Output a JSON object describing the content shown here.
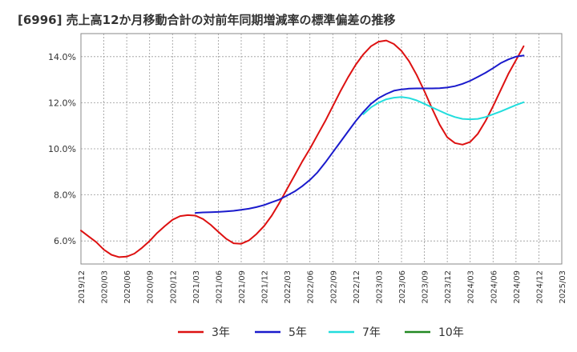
{
  "chart_data": {
    "type": "line",
    "title": "[6996]  売上高12か月移動合計の対前年同期増減率の標準偏差の推移",
    "xlabel": "",
    "ylabel": "",
    "ylim": [
      5.0,
      15.0
    ],
    "yticks": [
      6.0,
      8.0,
      10.0,
      12.0,
      14.0
    ],
    "ytick_labels": [
      "6.0%",
      "8.0%",
      "10.0%",
      "12.0%",
      "14.0%"
    ],
    "xtick_labels": [
      "2019/12",
      "2020/03",
      "2020/06",
      "2020/09",
      "2020/12",
      "2021/03",
      "2021/06",
      "2021/09",
      "2021/12",
      "2022/03",
      "2022/06",
      "2022/09",
      "2022/12",
      "2023/03",
      "2023/06",
      "2023/09",
      "2023/12",
      "2024/03",
      "2024/06",
      "2024/09",
      "2024/12",
      "2025/03"
    ],
    "grid": true,
    "legend_position": "bottom",
    "series": [
      {
        "name": "3年",
        "color": "#dd1111",
        "points": [
          [
            "2019/12",
            6.45
          ],
          [
            "2020/01",
            6.2
          ],
          [
            "2020/02",
            5.95
          ],
          [
            "2020/03",
            5.62
          ],
          [
            "2020/04",
            5.4
          ],
          [
            "2020/05",
            5.3
          ],
          [
            "2020/06",
            5.32
          ],
          [
            "2020/07",
            5.45
          ],
          [
            "2020/08",
            5.7
          ],
          [
            "2020/09",
            6.0
          ],
          [
            "2020/10",
            6.35
          ],
          [
            "2020/11",
            6.65
          ],
          [
            "2020/12",
            6.92
          ],
          [
            "2021/01",
            7.08
          ],
          [
            "2021/02",
            7.12
          ],
          [
            "2021/03",
            7.1
          ],
          [
            "2021/04",
            6.95
          ],
          [
            "2021/05",
            6.7
          ],
          [
            "2021/06",
            6.4
          ],
          [
            "2021/07",
            6.1
          ],
          [
            "2021/08",
            5.9
          ],
          [
            "2021/09",
            5.88
          ],
          [
            "2021/10",
            6.02
          ],
          [
            "2021/11",
            6.3
          ],
          [
            "2021/12",
            6.65
          ],
          [
            "2022/01",
            7.1
          ],
          [
            "2022/02",
            7.65
          ],
          [
            "2022/03",
            8.25
          ],
          [
            "2022/04",
            8.85
          ],
          [
            "2022/05",
            9.45
          ],
          [
            "2022/06",
            10.0
          ],
          [
            "2022/07",
            10.6
          ],
          [
            "2022/08",
            11.2
          ],
          [
            "2022/09",
            11.85
          ],
          [
            "2022/10",
            12.5
          ],
          [
            "2022/11",
            13.1
          ],
          [
            "2022/12",
            13.65
          ],
          [
            "2023/01",
            14.1
          ],
          [
            "2023/02",
            14.45
          ],
          [
            "2023/03",
            14.65
          ],
          [
            "2023/04",
            14.7
          ],
          [
            "2023/05",
            14.55
          ],
          [
            "2023/06",
            14.25
          ],
          [
            "2023/07",
            13.8
          ],
          [
            "2023/08",
            13.2
          ],
          [
            "2023/09",
            12.5
          ],
          [
            "2023/10",
            11.75
          ],
          [
            "2023/11",
            11.05
          ],
          [
            "2023/12",
            10.5
          ],
          [
            "2024/01",
            10.25
          ],
          [
            "2024/02",
            10.18
          ],
          [
            "2024/03",
            10.3
          ],
          [
            "2024/04",
            10.65
          ],
          [
            "2024/05",
            11.2
          ],
          [
            "2024/06",
            11.85
          ],
          [
            "2024/07",
            12.55
          ],
          [
            "2024/08",
            13.25
          ],
          [
            "2024/09",
            13.85
          ],
          [
            "2024/10",
            14.45
          ]
        ]
      },
      {
        "name": "5年",
        "color": "#1a1acc",
        "points": [
          [
            "2021/03",
            7.22
          ],
          [
            "2021/04",
            7.24
          ],
          [
            "2021/05",
            7.25
          ],
          [
            "2021/06",
            7.26
          ],
          [
            "2021/07",
            7.28
          ],
          [
            "2021/08",
            7.31
          ],
          [
            "2021/09",
            7.35
          ],
          [
            "2021/10",
            7.4
          ],
          [
            "2021/11",
            7.47
          ],
          [
            "2021/12",
            7.56
          ],
          [
            "2022/01",
            7.68
          ],
          [
            "2022/02",
            7.8
          ],
          [
            "2022/03",
            7.97
          ],
          [
            "2022/04",
            8.15
          ],
          [
            "2022/05",
            8.38
          ],
          [
            "2022/06",
            8.65
          ],
          [
            "2022/07",
            8.98
          ],
          [
            "2022/08",
            9.4
          ],
          [
            "2022/09",
            9.85
          ],
          [
            "2022/10",
            10.3
          ],
          [
            "2022/11",
            10.75
          ],
          [
            "2022/12",
            11.2
          ],
          [
            "2023/01",
            11.6
          ],
          [
            "2023/02",
            11.95
          ],
          [
            "2023/03",
            12.2
          ],
          [
            "2023/04",
            12.38
          ],
          [
            "2023/05",
            12.52
          ],
          [
            "2023/06",
            12.58
          ],
          [
            "2023/07",
            12.61
          ],
          [
            "2023/08",
            12.62
          ],
          [
            "2023/09",
            12.62
          ],
          [
            "2023/10",
            12.62
          ],
          [
            "2023/11",
            12.63
          ],
          [
            "2023/12",
            12.66
          ],
          [
            "2024/01",
            12.72
          ],
          [
            "2024/02",
            12.82
          ],
          [
            "2024/03",
            12.95
          ],
          [
            "2024/04",
            13.12
          ],
          [
            "2024/05",
            13.3
          ],
          [
            "2024/06",
            13.5
          ],
          [
            "2024/07",
            13.72
          ],
          [
            "2024/08",
            13.88
          ],
          [
            "2024/09",
            14.0
          ],
          [
            "2024/10",
            14.05
          ]
        ]
      },
      {
        "name": "7年",
        "color": "#22dddd",
        "points": [
          [
            "2023/01",
            11.5
          ],
          [
            "2023/02",
            11.8
          ],
          [
            "2023/03",
            12.0
          ],
          [
            "2023/04",
            12.15
          ],
          [
            "2023/05",
            12.22
          ],
          [
            "2023/06",
            12.25
          ],
          [
            "2023/07",
            12.2
          ],
          [
            "2023/08",
            12.1
          ],
          [
            "2023/09",
            11.95
          ],
          [
            "2023/10",
            11.8
          ],
          [
            "2023/11",
            11.65
          ],
          [
            "2023/12",
            11.5
          ],
          [
            "2024/01",
            11.38
          ],
          [
            "2024/02",
            11.3
          ],
          [
            "2024/03",
            11.28
          ],
          [
            "2024/04",
            11.3
          ],
          [
            "2024/05",
            11.38
          ],
          [
            "2024/06",
            11.5
          ],
          [
            "2024/07",
            11.62
          ],
          [
            "2024/08",
            11.76
          ],
          [
            "2024/09",
            11.9
          ],
          [
            "2024/10",
            12.02
          ]
        ]
      },
      {
        "name": "10年",
        "color": "#228822",
        "points": []
      }
    ]
  }
}
